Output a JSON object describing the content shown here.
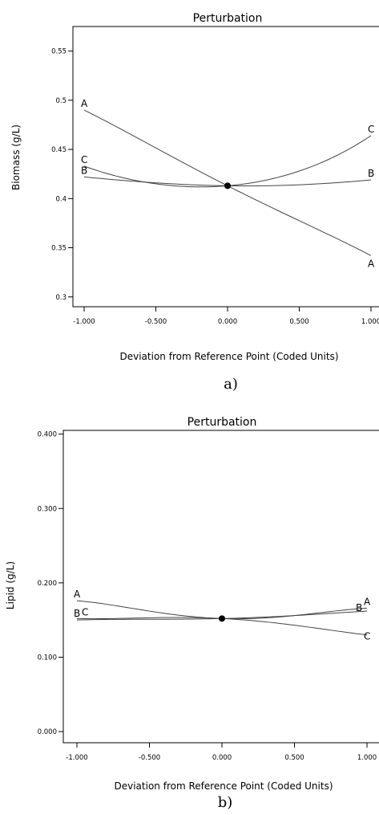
{
  "chart_data": [
    {
      "type": "line",
      "title": "Perturbation",
      "xlabel": "Deviation from Reference Point (Coded Units)",
      "ylabel": "Biomass (g/L)",
      "caption": "a)",
      "xlim": [
        -1,
        1
      ],
      "ylim": [
        0.29,
        0.575
      ],
      "x_ticks": [
        -1,
        -0.5,
        0,
        0.5,
        1
      ],
      "x_tick_labels": [
        "-1.000",
        "-0.500",
        "0.000",
        "0.500",
        "1.000"
      ],
      "y_ticks": [
        0.3,
        0.35,
        0.4,
        0.45,
        0.5,
        0.55
      ],
      "y_tick_labels": [
        "0.3",
        "0.35",
        "0.4",
        "0.45",
        "0.5",
        "0.55"
      ],
      "reference_point": {
        "x": 0,
        "y": 0.413
      },
      "series": [
        {
          "name": "A",
          "x": [
            -1,
            -0.5,
            0,
            0.5,
            1
          ],
          "y": [
            0.49,
            0.4515,
            0.413,
            0.3775,
            0.342
          ]
        },
        {
          "name": "B",
          "x": [
            -1,
            -0.5,
            0,
            0.5,
            1
          ],
          "y": [
            0.422,
            0.416,
            0.413,
            0.414,
            0.419
          ]
        },
        {
          "name": "C",
          "x": [
            -1,
            -0.5,
            0,
            0.5,
            1
          ],
          "y": [
            0.433,
            0.415,
            0.413,
            0.428,
            0.464
          ]
        }
      ],
      "series_labels": [
        {
          "name": "A",
          "at_x": -1,
          "y": 0.49
        },
        {
          "name": "A",
          "at_x": 1,
          "y": 0.342
        },
        {
          "name": "B",
          "at_x": -1,
          "y": 0.422
        },
        {
          "name": "B",
          "at_x": 1,
          "y": 0.419
        },
        {
          "name": "C",
          "at_x": -1,
          "y": 0.433
        },
        {
          "name": "C",
          "at_x": 1,
          "y": 0.464
        }
      ]
    },
    {
      "type": "line",
      "title": "Perturbation",
      "xlabel": "Deviation from Reference Point (Coded Units)",
      "ylabel": "Lipid (g/L)",
      "caption": "b)",
      "xlim": [
        -1,
        1
      ],
      "ylim": [
        -0.015,
        0.405
      ],
      "x_ticks": [
        -1,
        -0.5,
        0,
        0.5,
        1
      ],
      "x_tick_labels": [
        "-1.000",
        "-0.500",
        "0.000",
        "0.500",
        "1.000"
      ],
      "y_ticks": [
        0,
        0.1,
        0.2,
        0.3,
        0.4
      ],
      "y_tick_labels": [
        "0.000",
        "0.100",
        "0.200",
        "0.300",
        "0.400"
      ],
      "reference_point": {
        "x": 0,
        "y": 0.152
      },
      "series": [
        {
          "name": "A",
          "x": [
            -1,
            -0.5,
            0,
            0.5,
            1
          ],
          "y": [
            0.176,
            0.162,
            0.152,
            0.156,
            0.166
          ]
        },
        {
          "name": "B",
          "x": [
            -1,
            -0.5,
            0,
            0.5,
            1
          ],
          "y": [
            0.15,
            0.151,
            0.152,
            0.156,
            0.162
          ]
        },
        {
          "name": "C",
          "x": [
            -1,
            -0.5,
            0,
            0.5,
            1
          ],
          "y": [
            0.152,
            0.153,
            0.152,
            0.143,
            0.13
          ]
        }
      ],
      "series_labels": [
        {
          "name": "A",
          "at_x": -1,
          "y": 0.176
        },
        {
          "name": "A",
          "at_x": 1,
          "y": 0.166
        },
        {
          "name": "B",
          "at_x": -1,
          "y": 0.15
        },
        {
          "name": "B",
          "at_x": 1,
          "y": 0.162
        },
        {
          "name": "C",
          "at_x": -1,
          "y": 0.152
        },
        {
          "name": "C",
          "at_x": 1,
          "y": 0.13
        }
      ]
    }
  ]
}
